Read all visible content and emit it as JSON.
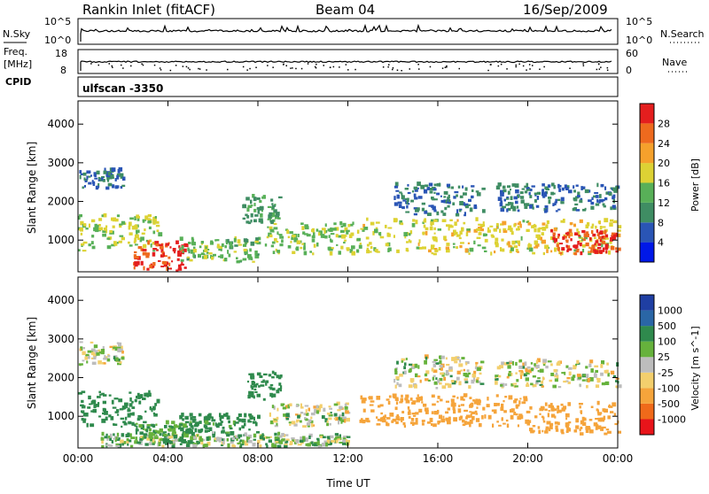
{
  "header": {
    "station": "Rankin Inlet (fitACF)",
    "beam": "Beam 04",
    "date": "16/Sep/2009"
  },
  "noise_panel": {
    "left_label": "N.Sky",
    "right_label": "N.Search",
    "left_ticks": [
      "10^5",
      "10^0"
    ],
    "right_ticks": [
      "10^5",
      "10^0"
    ]
  },
  "freq_panel": {
    "left_label_1": "Freq.",
    "left_label_2": "[MHz]",
    "right_label": "Nave",
    "left_ticks": [
      "18",
      "8"
    ],
    "right_ticks": [
      "60",
      "0"
    ]
  },
  "cpid": {
    "label": "CPID",
    "value": "ulfscan -3350"
  },
  "chart_data": [
    {
      "type": "heatmap",
      "name": "power",
      "ylabel": "Slant Range [km]",
      "yticks": [
        "1000",
        "2000",
        "3000",
        "4000"
      ],
      "ylim": [
        180,
        4600
      ],
      "xlim": [
        0,
        24
      ],
      "colorbar_label": "Power [dB]",
      "colorbar_ticks": [
        "4",
        "8",
        "12",
        "16",
        "20",
        "24",
        "28"
      ],
      "colors": [
        "#0018e8",
        "#2a55b5",
        "#3f8d63",
        "#58b058",
        "#ddd234",
        "#f5a12c",
        "#ee6a1e",
        "#e41e1e"
      ],
      "blobs": [
        {
          "t0": 0.0,
          "t1": 3.6,
          "r0": 700,
          "r1": 1600,
          "v": 14
        },
        {
          "t0": 0.0,
          "t1": 2.0,
          "r0": 2300,
          "r1": 2800,
          "v": 6
        },
        {
          "t0": 2.4,
          "t1": 4.8,
          "r0": 180,
          "r1": 900,
          "v": 26
        },
        {
          "t0": 4.5,
          "t1": 8.0,
          "r0": 400,
          "r1": 1000,
          "v": 12
        },
        {
          "t0": 7.3,
          "t1": 9.0,
          "r0": 1400,
          "r1": 2100,
          "v": 9
        },
        {
          "t0": 8.3,
          "t1": 12.5,
          "r0": 600,
          "r1": 1400,
          "v": 13
        },
        {
          "t0": 12.5,
          "t1": 24.0,
          "r0": 600,
          "r1": 1500,
          "v": 16
        },
        {
          "t0": 14.0,
          "t1": 18.0,
          "r0": 1600,
          "r1": 2400,
          "v": 6
        },
        {
          "t0": 18.5,
          "t1": 24.0,
          "r0": 1700,
          "r1": 2400,
          "v": 6
        },
        {
          "t0": 21.0,
          "t1": 24.0,
          "r0": 600,
          "r1": 1200,
          "v": 27
        }
      ]
    },
    {
      "type": "heatmap",
      "name": "velocity",
      "ylabel": "Slant Range [km]",
      "yticks": [
        "1000",
        "2000",
        "3000",
        "4000"
      ],
      "ylim": [
        180,
        4600
      ],
      "xlim": [
        0,
        24
      ],
      "xticks": [
        "00:00",
        "04:00",
        "08:00",
        "12:00",
        "16:00",
        "20:00",
        "00:00"
      ],
      "xlabel": "Time UT",
      "colorbar_label": "Velocity [m s^-1]",
      "colorbar_ticks": [
        "-1000",
        "-500",
        "-100",
        "-25",
        "25",
        "100",
        "500",
        "1000"
      ],
      "colors": [
        "#e8141a",
        "#f06a1a",
        "#f5a43b",
        "#f3cf6d",
        "#bdbdbd",
        "#66b23c",
        "#2f8a4d",
        "#2a66a6",
        "#1f3fa3"
      ],
      "blobs": [
        {
          "t0": 0.0,
          "t1": 2.0,
          "r0": 2300,
          "r1": 2900,
          "v": 0
        },
        {
          "t0": 0.0,
          "t1": 3.5,
          "r0": 700,
          "r1": 1600,
          "v": 300
        },
        {
          "t0": 2.5,
          "t1": 5.0,
          "r0": 250,
          "r1": 800,
          "v": 150
        },
        {
          "t0": 4.5,
          "t1": 8.0,
          "r0": 500,
          "r1": 1000,
          "v": 200
        },
        {
          "t0": 7.5,
          "t1": 9.0,
          "r0": 1400,
          "r1": 2100,
          "v": 300
        },
        {
          "t0": 8.5,
          "t1": 12.0,
          "r0": 700,
          "r1": 1300,
          "v": 0
        },
        {
          "t0": 12.5,
          "t1": 20.0,
          "r0": 700,
          "r1": 1500,
          "v": -300
        },
        {
          "t0": 14.0,
          "t1": 18.0,
          "r0": 1700,
          "r1": 2500,
          "v": 0
        },
        {
          "t0": 18.5,
          "t1": 24.0,
          "r0": 1700,
          "r1": 2400,
          "v": 0
        },
        {
          "t0": 20.0,
          "t1": 24.0,
          "r0": 500,
          "r1": 1300,
          "v": -300
        },
        {
          "t0": 1.0,
          "t1": 12.0,
          "r0": 180,
          "r1": 500,
          "v": 60
        }
      ]
    }
  ]
}
